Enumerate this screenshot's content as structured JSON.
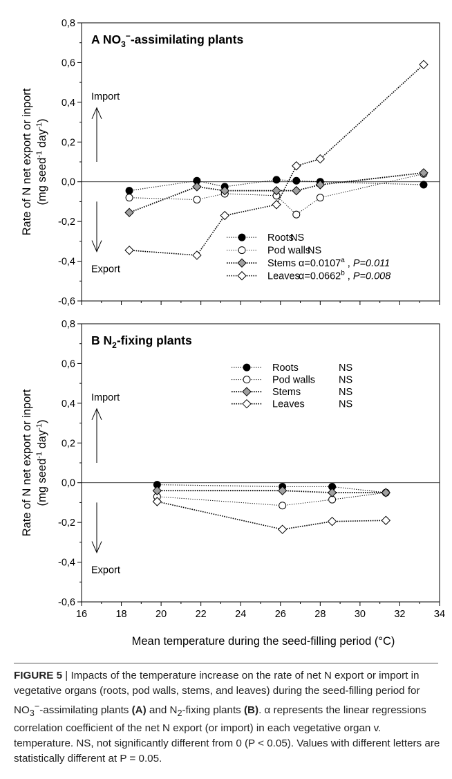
{
  "chart_data": [
    {
      "type": "scatter",
      "panel_letter": "A",
      "title_main": "NO",
      "title_sub": "3",
      "title_sup": "−",
      "title_rest": "-assimilating plants",
      "ylabel_line1": "Rate of N net export or inport",
      "ylabel_line2": "(mg seed",
      "ylabel_sup1": "-1",
      "ylabel_mid": " day",
      "ylabel_sup2": "-1",
      "ylabel_end": ")",
      "xlim": [
        16,
        34
      ],
      "ylim": [
        -0.6,
        0.8
      ],
      "yticks": [
        "0,8",
        "0,6",
        "0,4",
        "0,2",
        "0,0",
        "-0,2",
        "-0,4",
        "-0,6"
      ],
      "grid": false,
      "import_label": "Import",
      "export_label": "Export",
      "legend_position": "bottom-right",
      "series": [
        {
          "name": "Roots",
          "marker": "filled-circle",
          "stat_text": "NS",
          "x": [
            18.4,
            21.8,
            23.2,
            25.8,
            26.8,
            28.0,
            33.2
          ],
          "y": [
            -0.045,
            0.005,
            -0.025,
            0.01,
            0.005,
            0.0,
            -0.015
          ]
        },
        {
          "name": "Pod walls",
          "marker": "open-circle",
          "stat_text": "NS",
          "x": [
            18.4,
            21.8,
            23.2,
            25.8,
            26.8,
            28.0,
            33.2
          ],
          "y": [
            -0.08,
            -0.09,
            -0.06,
            -0.07,
            -0.165,
            -0.08,
            0.04
          ]
        },
        {
          "name": "Stems",
          "marker": "gray-diamond",
          "stat_alpha": "α=0.0107",
          "stat_sup": "a",
          "stat_p": "P=0.011",
          "x": [
            18.4,
            21.8,
            23.2,
            25.8,
            26.8,
            28.0,
            33.2
          ],
          "y": [
            -0.155,
            -0.025,
            -0.045,
            -0.045,
            -0.045,
            -0.015,
            0.045
          ]
        },
        {
          "name": "Leaves",
          "marker": "open-diamond",
          "stat_alpha": "α=0.0662",
          "stat_sup": "b",
          "stat_p": "P=0.008",
          "x": [
            18.4,
            21.8,
            23.2,
            25.8,
            26.8,
            28.0,
            33.2
          ],
          "y": [
            -0.345,
            -0.37,
            -0.17,
            -0.115,
            0.08,
            0.115,
            0.59
          ]
        }
      ]
    },
    {
      "type": "scatter",
      "panel_letter": "B",
      "title_main": "N",
      "title_sub": "2",
      "title_rest": "-fixing plants",
      "ylabel_line1": "Rate of N net export or inport",
      "ylabel_line2": "(mg seed",
      "ylabel_sup1": "-1",
      "ylabel_mid": " day",
      "ylabel_sup2": "-1",
      "ylabel_end": ")",
      "xlabel": "Mean temperature during the seed-filling period (°C)",
      "xlim": [
        16,
        34
      ],
      "ylim": [
        -0.6,
        0.8
      ],
      "xticks": [
        "16",
        "18",
        "20",
        "22",
        "24",
        "26",
        "28",
        "30",
        "32",
        "34"
      ],
      "yticks": [
        "0,8",
        "0,6",
        "0,4",
        "0,2",
        "0,0",
        "-0,2",
        "-0,4",
        "-0,6"
      ],
      "grid": false,
      "import_label": "Import",
      "export_label": "Export",
      "legend_position": "top-right",
      "series": [
        {
          "name": "Roots",
          "marker": "filled-circle",
          "stat_text": "NS",
          "x": [
            19.8,
            26.1,
            28.6,
            31.3
          ],
          "y": [
            -0.01,
            -0.02,
            -0.02,
            -0.05
          ]
        },
        {
          "name": "Pod walls",
          "marker": "open-circle",
          "stat_text": "NS",
          "x": [
            19.8,
            26.1,
            28.6,
            31.3
          ],
          "y": [
            -0.07,
            -0.115,
            -0.085,
            -0.05
          ]
        },
        {
          "name": "Stems",
          "marker": "gray-diamond",
          "stat_text": "NS",
          "x": [
            19.8,
            26.1,
            28.6,
            31.3
          ],
          "y": [
            -0.04,
            -0.04,
            -0.05,
            -0.05
          ]
        },
        {
          "name": "Leaves",
          "marker": "open-diamond",
          "stat_text": "NS",
          "x": [
            19.8,
            26.1,
            28.6,
            31.3
          ],
          "y": [
            -0.095,
            -0.235,
            -0.195,
            -0.19
          ]
        }
      ]
    }
  ],
  "caption": {
    "label": "FIGURE 5",
    "sep": " | ",
    "p1": "Impacts of the temperature increase on the rate of net N export or import in vegetative organs (roots, pod walls, stems, and leaves) during the seed-filling period for NO",
    "p1_sub": "3",
    "p1_sup": "−",
    "p2": "-assimilating plants ",
    "ref_a": "(A)",
    "p3": " and N",
    "p3_sub": "2",
    "p4": "-fixing plants ",
    "ref_b": "(B)",
    "p5": ". α represents the linear regressions correlation coefficient of the net N export (or import) in each vegetative organ v. temperature. NS, not significantly different from 0 (P < 0.05). Values with different letters are statistically different at P = 0.05."
  }
}
